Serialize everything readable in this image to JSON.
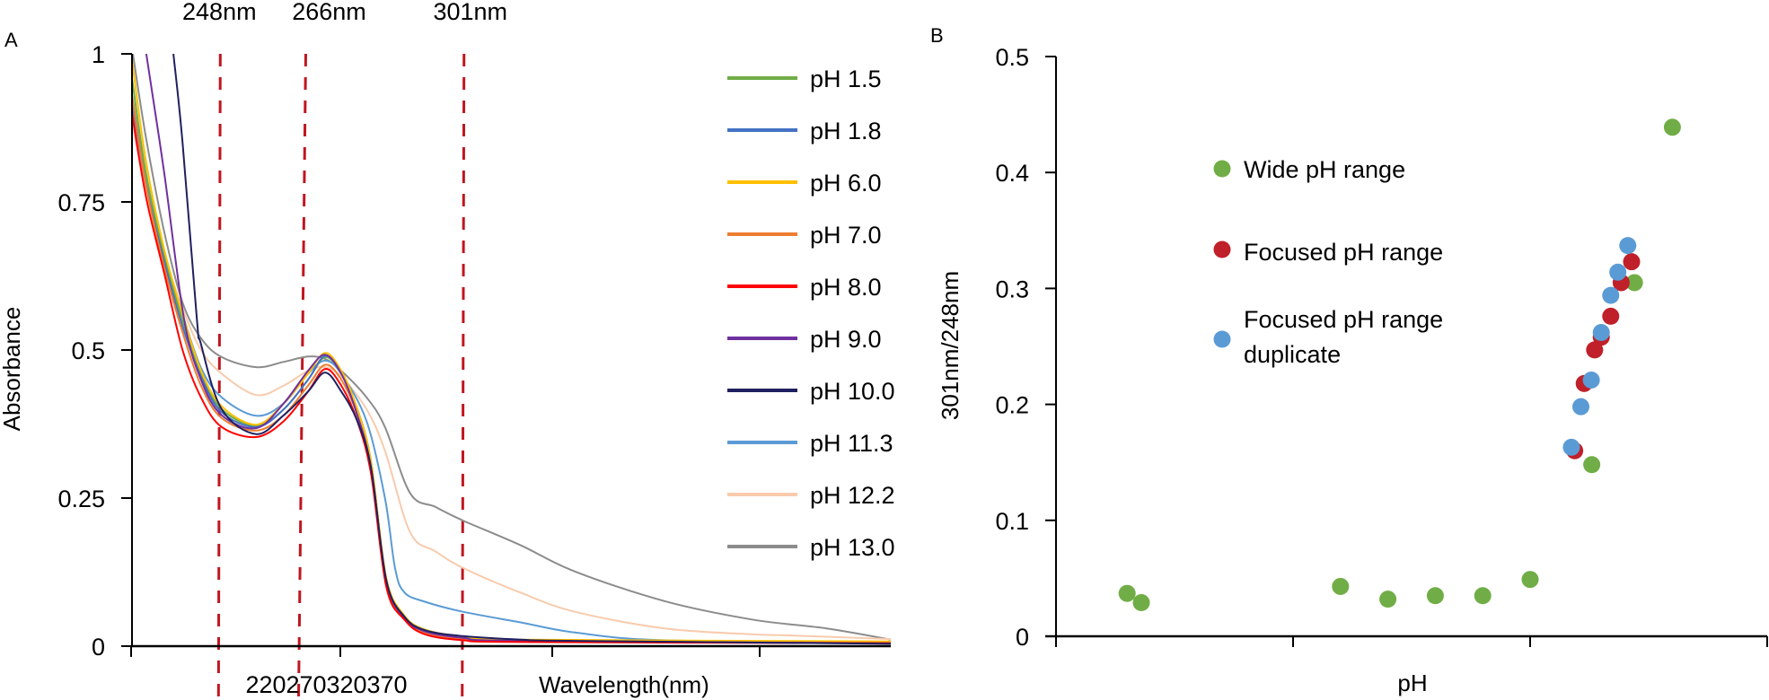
{
  "figure": {
    "panel_a_label": "A",
    "panel_b_label": "B"
  },
  "chart_data": [
    {
      "type": "line",
      "panel": "A",
      "title": "",
      "xlabel": "Wavelength(nm)",
      "ylabel": "Absorbance",
      "xlim": [
        229,
        394
      ],
      "ylim": [
        0,
        1
      ],
      "yticks": [
        0,
        0.25,
        0.5,
        0.75,
        1
      ],
      "ytick_labels": [
        "0",
        "0.25",
        "0.5",
        "0.75",
        "1"
      ],
      "xtick_labels": [
        "220",
        "270",
        "320",
        "370"
      ],
      "grid": false,
      "legend_position": "right",
      "markers": [
        {
          "label": "248nm",
          "wavelength": 248
        },
        {
          "label": "266nm",
          "wavelength": 266
        },
        {
          "label": "301nm",
          "wavelength": 301
        }
      ],
      "marker_color": "#C0161F",
      "series": [
        {
          "name": "pH 1.5",
          "color": "#70AD47",
          "points": [
            [
              229,
              0.958
            ],
            [
              232,
              0.8
            ],
            [
              236,
              0.66
            ],
            [
              240,
              0.55
            ],
            [
              244,
              0.46
            ],
            [
              248.5,
              0.4
            ],
            [
              256,
              0.372
            ],
            [
              262,
              0.4
            ],
            [
              267.3,
              0.45
            ],
            [
              271,
              0.488
            ],
            [
              274.5,
              0.46
            ],
            [
              278,
              0.4
            ],
            [
              281,
              0.31
            ],
            [
              284.3,
              0.11
            ],
            [
              288.2,
              0.048
            ],
            [
              292.7,
              0.025
            ],
            [
              301,
              0.013
            ],
            [
              313.6,
              0.009
            ],
            [
              394,
              0.007
            ]
          ]
        },
        {
          "name": "pH 1.8",
          "color": "#4472C4",
          "points": [
            [
              229,
              0.92
            ],
            [
              232,
              0.78
            ],
            [
              236,
              0.65
            ],
            [
              240,
              0.54
            ],
            [
              244,
              0.455
            ],
            [
              248.5,
              0.395
            ],
            [
              256,
              0.37
            ],
            [
              262,
              0.4
            ],
            [
              267.3,
              0.45
            ],
            [
              271,
              0.49
            ],
            [
              274.5,
              0.46
            ],
            [
              278,
              0.4
            ],
            [
              281,
              0.31
            ],
            [
              284.3,
              0.11
            ],
            [
              288.2,
              0.047
            ],
            [
              292.7,
              0.024
            ],
            [
              301,
              0.012
            ],
            [
              313.6,
              0.008
            ],
            [
              394,
              0.005
            ]
          ]
        },
        {
          "name": "pH 6.0",
          "color": "#FFC000",
          "points": [
            [
              229,
              0.99
            ],
            [
              232,
              0.82
            ],
            [
              236,
              0.67
            ],
            [
              240,
              0.56
            ],
            [
              244,
              0.465
            ],
            [
              248.5,
              0.405
            ],
            [
              256,
              0.374
            ],
            [
              262,
              0.41
            ],
            [
              267.3,
              0.46
            ],
            [
              271,
              0.495
            ],
            [
              274.5,
              0.465
            ],
            [
              278,
              0.4
            ],
            [
              281,
              0.31
            ],
            [
              284.3,
              0.115
            ],
            [
              288.2,
              0.052
            ],
            [
              292.7,
              0.028
            ],
            [
              301,
              0.016
            ],
            [
              313.6,
              0.011
            ],
            [
              394,
              0.008
            ]
          ]
        },
        {
          "name": "pH 7.0",
          "color": "#ED7D31",
          "points": [
            [
              229,
              0.93
            ],
            [
              232,
              0.78
            ],
            [
              236,
              0.64
            ],
            [
              240,
              0.53
            ],
            [
              244,
              0.44
            ],
            [
              248.5,
              0.385
            ],
            [
              256,
              0.364
            ],
            [
              262,
              0.39
            ],
            [
              267.3,
              0.44
            ],
            [
              271,
              0.475
            ],
            [
              274.5,
              0.45
            ],
            [
              278,
              0.39
            ],
            [
              281,
              0.3
            ],
            [
              284.3,
              0.105
            ],
            [
              288.2,
              0.046
            ],
            [
              292.7,
              0.022
            ],
            [
              301,
              0.012
            ],
            [
              313.6,
              0.008
            ],
            [
              394,
              0.007
            ]
          ]
        },
        {
          "name": "pH 8.0",
          "color": "#FF0000",
          "points": [
            [
              229,
              0.9
            ],
            [
              232,
              0.76
            ],
            [
              236,
              0.63
            ],
            [
              240,
              0.5
            ],
            [
              244,
              0.42
            ],
            [
              248.5,
              0.37
            ],
            [
              256,
              0.353
            ],
            [
              262,
              0.38
            ],
            [
              267.3,
              0.43
            ],
            [
              271,
              0.468
            ],
            [
              274.5,
              0.44
            ],
            [
              278,
              0.38
            ],
            [
              281,
              0.29
            ],
            [
              284.3,
              0.1
            ],
            [
              288.2,
              0.045
            ],
            [
              292.7,
              0.02
            ],
            [
              301,
              0.01
            ],
            [
              313.6,
              0.007
            ],
            [
              394,
              0.005
            ]
          ]
        },
        {
          "name": "pH 9.0",
          "color": "#7030A0",
          "points": [
            [
              232.1,
              1.0
            ],
            [
              236,
              0.8
            ],
            [
              240.3,
              0.553
            ],
            [
              244,
              0.45
            ],
            [
              248.5,
              0.39
            ],
            [
              256,
              0.368
            ],
            [
              262,
              0.41
            ],
            [
              267.3,
              0.465
            ],
            [
              271,
              0.492
            ],
            [
              274.5,
              0.46
            ],
            [
              278,
              0.39
            ],
            [
              281,
              0.3
            ],
            [
              284.3,
              0.11
            ],
            [
              288.2,
              0.048
            ],
            [
              292.7,
              0.025
            ],
            [
              301,
              0.014
            ],
            [
              313.6,
              0.009
            ],
            [
              394,
              0.005
            ]
          ]
        },
        {
          "name": "pH 10.0",
          "color": "#1F2060",
          "points": [
            [
              238,
              1.0
            ],
            [
              240,
              0.85
            ],
            [
              243.1,
              0.553
            ],
            [
              244,
              0.51
            ],
            [
              248.5,
              0.4
            ],
            [
              256,
              0.358
            ],
            [
              262,
              0.39
            ],
            [
              267.3,
              0.43
            ],
            [
              271,
              0.462
            ],
            [
              274.5,
              0.43
            ],
            [
              278,
              0.38
            ],
            [
              281,
              0.3
            ],
            [
              284.3,
              0.111
            ],
            [
              288.2,
              0.05
            ],
            [
              292.7,
              0.027
            ],
            [
              301,
              0.017
            ],
            [
              313.6,
              0.011
            ],
            [
              325.3,
              0.009
            ],
            [
              394,
              0.004
            ]
          ]
        },
        {
          "name": "pH 11.3",
          "color": "#5B9BD5",
          "points": [
            [
              229,
              0.93
            ],
            [
              232,
              0.79
            ],
            [
              236,
              0.66
            ],
            [
              240,
              0.56
            ],
            [
              244,
              0.47
            ],
            [
              248.5,
              0.42
            ],
            [
              256,
              0.389
            ],
            [
              262,
              0.41
            ],
            [
              267.3,
              0.46
            ],
            [
              271,
              0.482
            ],
            [
              274.5,
              0.46
            ],
            [
              280,
              0.38
            ],
            [
              284,
              0.25
            ],
            [
              286.2,
              0.132
            ],
            [
              288.2,
              0.091
            ],
            [
              292.7,
              0.075
            ],
            [
              301,
              0.058
            ],
            [
              313.6,
              0.04
            ],
            [
              325.3,
              0.023
            ],
            [
              344.8,
              0.01
            ],
            [
              394,
              0.006
            ]
          ]
        },
        {
          "name": "pH 12.2",
          "color": "#F8CBAD",
          "points": [
            [
              229,
              0.886
            ],
            [
              232,
              0.77
            ],
            [
              236,
              0.66
            ],
            [
              240,
              0.57
            ],
            [
              244,
              0.5
            ],
            [
              248.5,
              0.46
            ],
            [
              256,
              0.424
            ],
            [
              262,
              0.44
            ],
            [
              267.3,
              0.465
            ],
            [
              271,
              0.471
            ],
            [
              274.5,
              0.455
            ],
            [
              280,
              0.4
            ],
            [
              284,
              0.33
            ],
            [
              289.5,
              0.192
            ],
            [
              295,
              0.16
            ],
            [
              301,
              0.132
            ],
            [
              313.6,
              0.09
            ],
            [
              325.3,
              0.058
            ],
            [
              344.8,
              0.03
            ],
            [
              363.8,
              0.02
            ],
            [
              372.2,
              0.018
            ],
            [
              394,
              0.012
            ]
          ]
        },
        {
          "name": "pH 13.0",
          "color": "#8C8C8C",
          "points": [
            [
              229.2,
              1.0
            ],
            [
              232,
              0.86
            ],
            [
              236,
              0.7
            ],
            [
              240,
              0.58
            ],
            [
              244,
              0.52
            ],
            [
              248.5,
              0.488
            ],
            [
              256,
              0.471
            ],
            [
              262,
              0.48
            ],
            [
              267.3,
              0.489
            ],
            [
              271,
              0.485
            ],
            [
              274.5,
              0.465
            ],
            [
              280,
              0.42
            ],
            [
              284,
              0.37
            ],
            [
              289.5,
              0.258
            ],
            [
              295,
              0.235
            ],
            [
              301,
              0.212
            ],
            [
              313.6,
              0.17
            ],
            [
              325.3,
              0.126
            ],
            [
              344.8,
              0.076
            ],
            [
              363.8,
              0.045
            ],
            [
              380,
              0.03
            ],
            [
              394,
              0.011
            ]
          ]
        }
      ]
    },
    {
      "type": "scatter",
      "panel": "B",
      "title": "",
      "xlabel": "pH",
      "ylabel": "301nm/248nm",
      "xlim": [
        0,
        15
      ],
      "xticks": [
        0,
        5,
        10,
        15
      ],
      "ylim": [
        0,
        0.5
      ],
      "yticks": [
        0,
        0.1,
        0.2,
        0.3,
        0.4,
        0.5
      ],
      "ytick_labels": [
        "0",
        "0.1",
        "0.2",
        "0.3",
        "0.4",
        "0.5"
      ],
      "grid": false,
      "legend_position": "upper-middle",
      "series": [
        {
          "name": "Wide pH range",
          "legend_lines": [
            "Wide pH range"
          ],
          "color": "#70AD47",
          "points": [
            [
              1.5,
              0.037
            ],
            [
              1.8,
              0.029
            ],
            [
              6.0,
              0.043
            ],
            [
              7.0,
              0.032
            ],
            [
              8.0,
              0.035
            ],
            [
              9.0,
              0.035
            ],
            [
              10.0,
              0.049
            ],
            [
              11.3,
              0.148
            ],
            [
              12.2,
              0.305
            ],
            [
              13.0,
              0.439
            ]
          ]
        },
        {
          "name": "Focused pH range",
          "legend_lines": [
            "Focused pH range"
          ],
          "color": "#C0202A",
          "points": [
            [
              10.94,
              0.16
            ],
            [
              11.14,
              0.218
            ],
            [
              11.36,
              0.247
            ],
            [
              11.5,
              0.258
            ],
            [
              11.7,
              0.276
            ],
            [
              11.92,
              0.305
            ],
            [
              12.14,
              0.323
            ]
          ]
        },
        {
          "name": "Focused pH range duplicate",
          "legend_lines": [
            "Focused pH range",
            "duplicate"
          ],
          "color": "#5B9BD5",
          "points": [
            [
              10.87,
              0.163
            ],
            [
              11.07,
              0.198
            ],
            [
              11.29,
              0.221
            ],
            [
              11.5,
              0.262
            ],
            [
              11.7,
              0.294
            ],
            [
              11.85,
              0.314
            ],
            [
              12.06,
              0.337
            ]
          ]
        }
      ]
    }
  ]
}
